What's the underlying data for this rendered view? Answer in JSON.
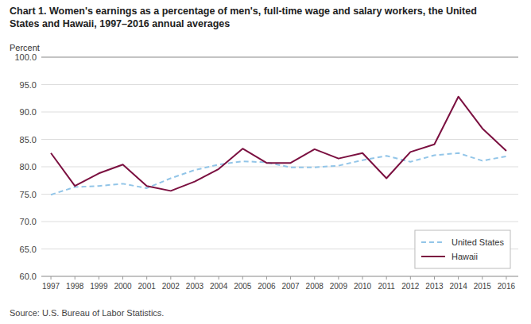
{
  "chart_data": {
    "type": "line",
    "title": [
      "Chart 1. Women's earnings as a percentage of men's, full-time wage and salary workers, the United",
      "States and Hawaii, 1997–2016  annual averages"
    ],
    "y_label": "Percent",
    "source": "Source:  U.S. Bureau of Labor Statistics.",
    "x": [
      1997,
      1998,
      1999,
      2000,
      2001,
      2002,
      2003,
      2004,
      2005,
      2006,
      2007,
      2008,
      2009,
      2010,
      2011,
      2012,
      2013,
      2014,
      2015,
      2016
    ],
    "series": [
      {
        "name": "United States",
        "color": "#92C5E8",
        "line_style": "dashed",
        "values": [
          74.9,
          76.3,
          76.5,
          76.9,
          76.1,
          77.9,
          79.4,
          80.4,
          81.0,
          80.8,
          79.9,
          79.9,
          80.2,
          81.2,
          82.0,
          80.9,
          82.1,
          82.5,
          81.1,
          81.9
        ]
      },
      {
        "name": "Hawaii",
        "color": "#7B1040",
        "line_style": "solid",
        "values": [
          82.5,
          76.5,
          78.8,
          80.4,
          76.5,
          75.6,
          77.3,
          79.6,
          83.3,
          80.7,
          80.7,
          83.2,
          81.5,
          82.5,
          77.9,
          82.7,
          84.1,
          92.8,
          87.0,
          82.9
        ]
      }
    ],
    "xlim": [
      1996.6,
      2016.5
    ],
    "xticks": [
      1997,
      1998,
      1999,
      2000,
      2001,
      2002,
      2003,
      2004,
      2005,
      2006,
      2007,
      2008,
      2009,
      2010,
      2011,
      2012,
      2013,
      2014,
      2015,
      2016
    ],
    "ylim": [
      60.0,
      100.0
    ],
    "yticks": [
      {
        "value": 60.0,
        "label": "60.0"
      },
      {
        "value": 65.0,
        "label": "65.0"
      },
      {
        "value": 70.0,
        "label": "70.0"
      },
      {
        "value": 75.0,
        "label": "75.0"
      },
      {
        "value": 80.0,
        "label": "80.0"
      },
      {
        "value": 85.0,
        "label": "85.0"
      },
      {
        "value": 90.0,
        "label": "90.0"
      },
      {
        "value": 95.0,
        "label": "95.0"
      },
      {
        "value": 100.0,
        "label": "100.0"
      }
    ],
    "grid": true,
    "legend": "lower right"
  }
}
